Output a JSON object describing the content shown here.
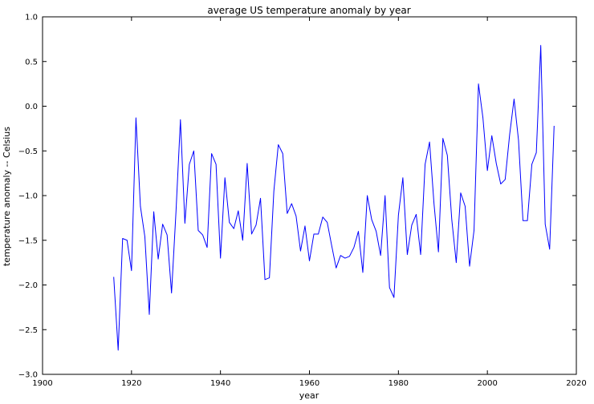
{
  "chart_data": {
    "type": "line",
    "title": "average US temperature anomaly by year",
    "xlabel": "year",
    "ylabel": "temperature anomaly -- Celsius",
    "xlim": [
      1900,
      2020
    ],
    "ylim": [
      -3.0,
      1.0
    ],
    "xticks": [
      1900,
      1920,
      1940,
      1960,
      1980,
      2000,
      2020
    ],
    "yticks": [
      -3.0,
      -2.5,
      -2.0,
      -1.5,
      -1.0,
      -0.5,
      0.0,
      0.5,
      1.0
    ],
    "xtick_labels": [
      "1900",
      "1920",
      "1940",
      "1960",
      "1980",
      "2000",
      "2020"
    ],
    "ytick_labels": [
      "−3.0",
      "−2.5",
      "−2.0",
      "−1.5",
      "−1.0",
      "−0.5",
      "0.0",
      "0.5",
      "1.0"
    ],
    "grid": false,
    "line_color": "#0000ff",
    "x": [
      1916,
      1917,
      1918,
      1919,
      1920,
      1921,
      1922,
      1923,
      1924,
      1925,
      1926,
      1927,
      1928,
      1929,
      1930,
      1931,
      1932,
      1933,
      1934,
      1935,
      1936,
      1937,
      1938,
      1939,
      1940,
      1941,
      1942,
      1943,
      1944,
      1945,
      1946,
      1947,
      1948,
      1949,
      1950,
      1951,
      1952,
      1953,
      1954,
      1955,
      1956,
      1957,
      1958,
      1959,
      1960,
      1961,
      1962,
      1963,
      1964,
      1965,
      1966,
      1967,
      1968,
      1969,
      1970,
      1971,
      1972,
      1973,
      1974,
      1975,
      1976,
      1977,
      1978,
      1979,
      1980,
      1981,
      1982,
      1983,
      1984,
      1985,
      1986,
      1987,
      1988,
      1989,
      1990,
      1991,
      1992,
      1993,
      1994,
      1995,
      1996,
      1997,
      1998,
      1999,
      2000,
      2001,
      2002,
      2003,
      2004,
      2005,
      2006,
      2007,
      2008,
      2009,
      2010,
      2011,
      2012,
      2013,
      2014,
      2015
    ],
    "y": [
      -1.91,
      -2.73,
      -1.48,
      -1.5,
      -1.84,
      -0.13,
      -1.12,
      -1.46,
      -2.33,
      -1.18,
      -1.71,
      -1.32,
      -1.44,
      -2.09,
      -1.18,
      -0.15,
      -1.31,
      -0.65,
      -0.5,
      -1.39,
      -1.44,
      -1.58,
      -0.53,
      -0.65,
      -1.7,
      -0.8,
      -1.3,
      -1.37,
      -1.17,
      -1.5,
      -0.64,
      -1.43,
      -1.33,
      -1.03,
      -1.94,
      -1.92,
      -0.95,
      -0.43,
      -0.53,
      -1.2,
      -1.09,
      -1.23,
      -1.62,
      -1.34,
      -1.73,
      -1.43,
      -1.43,
      -1.24,
      -1.3,
      -1.56,
      -1.81,
      -1.67,
      -1.7,
      -1.68,
      -1.58,
      -1.4,
      -1.86,
      -1.0,
      -1.27,
      -1.4,
      -1.67,
      -1.0,
      -2.03,
      -2.14,
      -1.22,
      -0.8,
      -1.66,
      -1.33,
      -1.21,
      -1.66,
      -0.65,
      -0.4,
      -1.09,
      -1.63,
      -0.36,
      -0.55,
      -1.27,
      -1.75,
      -0.97,
      -1.12,
      -1.79,
      -1.39,
      0.25,
      -0.13,
      -0.72,
      -0.33,
      -0.64,
      -0.87,
      -0.82,
      -0.32,
      0.08,
      -0.38,
      -1.28,
      -1.28,
      -0.65,
      -0.52,
      0.68,
      -1.32,
      -1.6,
      -0.22
    ]
  }
}
